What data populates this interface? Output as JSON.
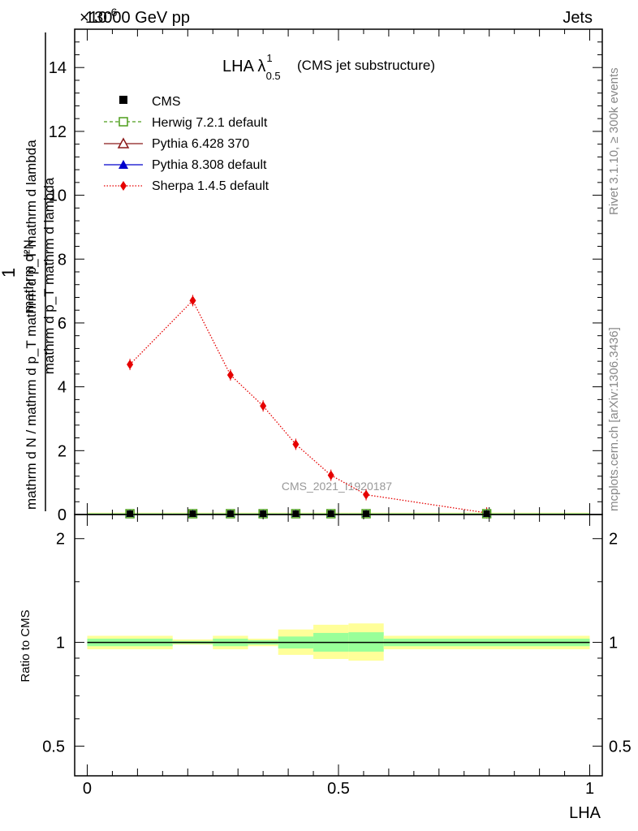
{
  "header": {
    "energy_label": "13000 GeV pp",
    "process_label": "Jets",
    "exponent_label": "×10",
    "exponent_value": "-6"
  },
  "side_labels": {
    "rivet": "Rivet 3.1.10, ≥ 300k events",
    "mcplots": "mcplots.cern.ch [arXiv:1306.3436]"
  },
  "watermark": "CMS_2021_I1920187",
  "chart_data": [
    {
      "type": "line",
      "panel": "main",
      "title": "LHA λ",
      "title_sup": "1",
      "title_sub": "0.5",
      "subtitle": "(CMS jet substructure)",
      "ylabel_numerator": "1",
      "ylabel_denominator": "mathrm d N / mathrm d p_T mathrm d p_T mathrm d lambda",
      "ylabel_num_lines": [
        "mathrm d²N",
        "mathrm d p_T mathrm d lambda"
      ],
      "xlim": [
        -0.025,
        1.025
      ],
      "ylim": [
        0,
        15.2
      ],
      "y_ticks": [
        0,
        2,
        4,
        6,
        8,
        10,
        12,
        14
      ],
      "y_tick_labels": [
        "0",
        "2",
        "4",
        "6",
        "8",
        "10",
        "12",
        "14"
      ],
      "legend_position": "top-left",
      "legend": [
        {
          "name": "CMS",
          "color": "#000000",
          "marker": "filled-square",
          "line": "none"
        },
        {
          "name": "Herwig 7.2.1 default",
          "color": "#4d9e1a",
          "marker": "open-square",
          "line": "dashed"
        },
        {
          "name": "Pythia 6.428 370",
          "color": "#8b1a1a",
          "marker": "open-triangle",
          "line": "solid"
        },
        {
          "name": "Pythia 8.308 default",
          "color": "#0000cc",
          "marker": "filled-triangle",
          "line": "solid"
        },
        {
          "name": "Sherpa 1.4.5 default",
          "color": "#e60000",
          "marker": "filled-diamond",
          "line": "dotted"
        }
      ],
      "series": [
        {
          "name": "CMS",
          "x": [
            0.085,
            0.21,
            0.285,
            0.35,
            0.415,
            0.485,
            0.555,
            0.795
          ],
          "y": [
            0.05,
            0.05,
            0.05,
            0.05,
            0.05,
            0.05,
            0.05,
            0.05
          ]
        },
        {
          "name": "Sherpa 1.4.5 default",
          "x": [
            0.085,
            0.21,
            0.285,
            0.35,
            0.415,
            0.485,
            0.555,
            0.795
          ],
          "y": [
            4.7,
            6.7,
            4.37,
            3.4,
            2.2,
            1.23,
            0.62,
            0.05
          ]
        }
      ]
    },
    {
      "type": "area",
      "panel": "ratio",
      "ylabel": "Ratio to CMS",
      "xlabel": "LHA",
      "xlim": [
        -0.025,
        1.025
      ],
      "ylim": [
        0.41,
        2.35
      ],
      "y_scale": "log",
      "y_ticks": [
        0.5,
        1,
        2
      ],
      "y_tick_labels": [
        "0.5",
        "1",
        "2"
      ],
      "x_ticks": [
        0,
        0.5,
        1
      ],
      "x_tick_labels": [
        "0",
        "0.5",
        "1"
      ],
      "reference_line": 1,
      "bands": [
        {
          "x_low": 0.0,
          "x_high": 0.17,
          "inner": [
            0.975,
            1.025
          ],
          "outer": [
            0.955,
            1.045
          ]
        },
        {
          "x_low": 0.17,
          "x_high": 0.25,
          "inner": [
            0.99,
            1.01
          ],
          "outer": [
            0.985,
            1.02
          ]
        },
        {
          "x_low": 0.25,
          "x_high": 0.32,
          "inner": [
            0.975,
            1.025
          ],
          "outer": [
            0.955,
            1.045
          ]
        },
        {
          "x_low": 0.32,
          "x_high": 0.38,
          "inner": [
            0.985,
            1.015
          ],
          "outer": [
            0.975,
            1.025
          ]
        },
        {
          "x_low": 0.38,
          "x_high": 0.45,
          "inner": [
            0.96,
            1.04
          ],
          "outer": [
            0.92,
            1.09
          ]
        },
        {
          "x_low": 0.45,
          "x_high": 0.52,
          "inner": [
            0.94,
            1.065
          ],
          "outer": [
            0.895,
            1.125
          ]
        },
        {
          "x_low": 0.52,
          "x_high": 0.59,
          "inner": [
            0.94,
            1.07
          ],
          "outer": [
            0.885,
            1.135
          ]
        },
        {
          "x_low": 0.59,
          "x_high": 1.0,
          "inner": [
            0.975,
            1.025
          ],
          "outer": [
            0.955,
            1.045
          ]
        }
      ]
    }
  ]
}
